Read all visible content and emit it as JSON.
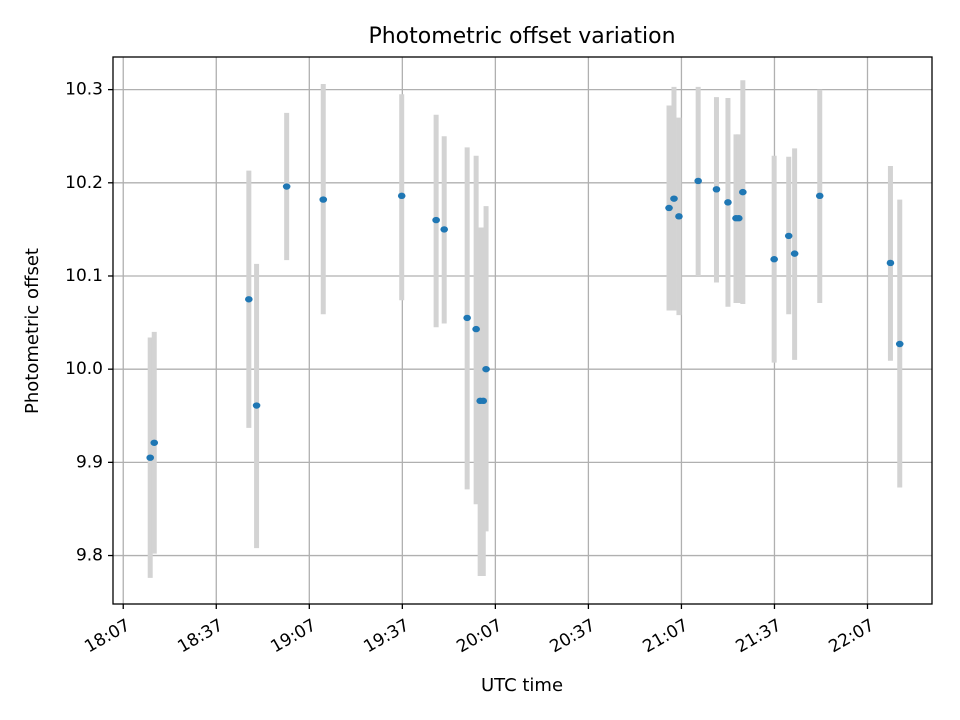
{
  "chart_data": {
    "type": "scatter",
    "title": "Photometric offset variation",
    "xlabel": "UTC time",
    "ylabel": "Photometric offset",
    "x_tick_labels": [
      "18:07",
      "18:37",
      "19:07",
      "19:37",
      "20:07",
      "20:37",
      "21:07",
      "21:37",
      "22:07"
    ],
    "x_ticks": [
      "18:07",
      "18:37",
      "19:07",
      "19:37",
      "20:07",
      "20:37",
      "21:07",
      "21:37",
      "22:07"
    ],
    "xlim": [
      "18:03.7",
      "22:27.8"
    ],
    "y_tick_labels": [
      "9.8",
      "9.9",
      "10.0",
      "10.1",
      "10.2",
      "10.3"
    ],
    "y_ticks": [
      9.8,
      9.9,
      10.0,
      10.1,
      10.2,
      10.3
    ],
    "ylim": [
      9.748,
      10.335
    ],
    "grid": true,
    "colors": {
      "marker": "#1f77b4",
      "errorbar": "#d3d3d3",
      "grid": "#b0b0b0"
    },
    "points": [
      {
        "time": "18:15.7",
        "value": 9.905,
        "low": 9.776,
        "high": 10.034
      },
      {
        "time": "18:17.0",
        "value": 9.921,
        "low": 9.802,
        "high": 10.04
      },
      {
        "time": "18:47.5",
        "value": 10.075,
        "low": 9.937,
        "high": 10.213
      },
      {
        "time": "18:50.0",
        "value": 9.961,
        "low": 9.808,
        "high": 10.113
      },
      {
        "time": "18:59.7",
        "value": 10.196,
        "low": 10.117,
        "high": 10.275
      },
      {
        "time": "19:11.5",
        "value": 10.182,
        "low": 10.059,
        "high": 10.306
      },
      {
        "time": "19:36.8",
        "value": 10.186,
        "low": 10.074,
        "high": 10.295
      },
      {
        "time": "19:47.9",
        "value": 10.16,
        "low": 10.045,
        "high": 10.273
      },
      {
        "time": "19:50.5",
        "value": 10.15,
        "low": 10.049,
        "high": 10.25
      },
      {
        "time": "19:57.9",
        "value": 10.055,
        "low": 9.871,
        "high": 10.238
      },
      {
        "time": "20:00.8",
        "value": 10.043,
        "low": 9.855,
        "high": 10.229
      },
      {
        "time": "20:02.1",
        "value": 9.966,
        "low": 9.778,
        "high": 10.152
      },
      {
        "time": "20:03.1",
        "value": 9.966,
        "low": 9.778,
        "high": 10.152
      },
      {
        "time": "20:04.0",
        "value": 10.0,
        "low": 9.826,
        "high": 10.175
      },
      {
        "time": "21:03.0",
        "value": 10.173,
        "low": 10.063,
        "high": 10.283
      },
      {
        "time": "21:04.6",
        "value": 10.183,
        "low": 10.063,
        "high": 10.303
      },
      {
        "time": "21:06.2",
        "value": 10.164,
        "low": 10.058,
        "high": 10.27
      },
      {
        "time": "21:12.4",
        "value": 10.202,
        "low": 10.1,
        "high": 10.303
      },
      {
        "time": "21:18.3",
        "value": 10.193,
        "low": 10.093,
        "high": 10.292
      },
      {
        "time": "21:22.0",
        "value": 10.179,
        "low": 10.067,
        "high": 10.291
      },
      {
        "time": "21:24.6",
        "value": 10.162,
        "low": 10.071,
        "high": 10.252
      },
      {
        "time": "21:25.5",
        "value": 10.162,
        "low": 10.071,
        "high": 10.252
      },
      {
        "time": "21:26.8",
        "value": 10.19,
        "low": 10.07,
        "high": 10.31
      },
      {
        "time": "21:36.9",
        "value": 10.118,
        "low": 10.007,
        "high": 10.229
      },
      {
        "time": "21:41.6",
        "value": 10.143,
        "low": 10.059,
        "high": 10.228
      },
      {
        "time": "21:43.5",
        "value": 10.124,
        "low": 10.01,
        "high": 10.237
      },
      {
        "time": "21:51.6",
        "value": 10.186,
        "low": 10.071,
        "high": 10.3
      },
      {
        "time": "22:14.4",
        "value": 10.114,
        "low": 10.009,
        "high": 10.218
      },
      {
        "time": "22:17.4",
        "value": 10.027,
        "low": 9.873,
        "high": 10.182
      }
    ]
  }
}
